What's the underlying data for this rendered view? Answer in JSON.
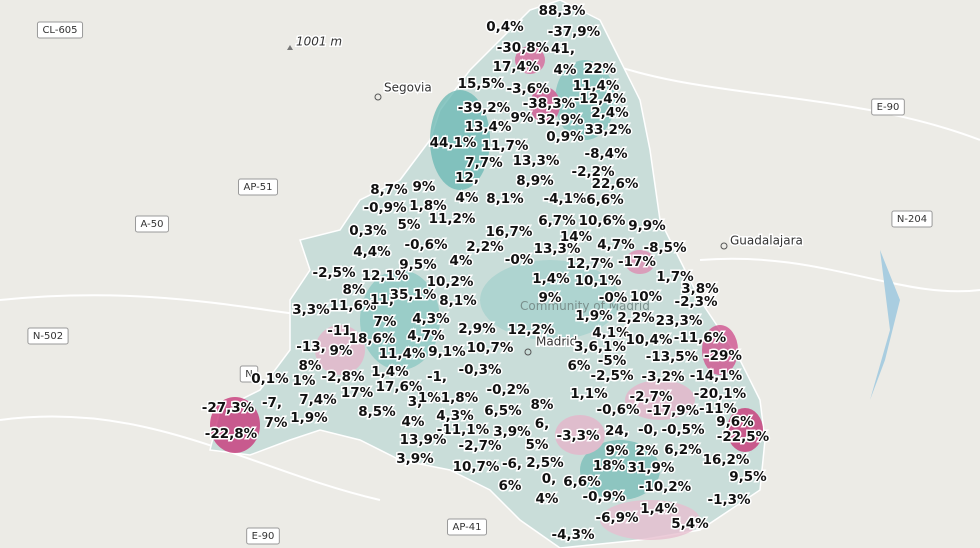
{
  "roads": [
    "CL-605",
    "AP-51",
    "A-50",
    "N-502",
    "E-90",
    "N-204",
    "E-90",
    "AP-41",
    "N"
  ],
  "places": {
    "segovia": "Segovia",
    "guadalajara": "Guadalajara",
    "peak": "1001 m",
    "madrid": "Madrid"
  },
  "labels": [
    "88,3%",
    "0,4%",
    "-37,9%",
    "-30,8%",
    "41,",
    "17,4%",
    "4%",
    "22%",
    "11,4%",
    "15,5%",
    "-3,6%",
    "-12,4%",
    "-38,3%",
    "-39,2%",
    "2,4%",
    "9%",
    "32,9%",
    "13,4%",
    "33,2%",
    "0,9%",
    "44,1%",
    "11,7%",
    "-8,4%",
    "7,7%",
    "13,3%",
    "12,",
    "-2,2%",
    "8,9%",
    "22,6%",
    "8,7%",
    "9%",
    "4%",
    "8,1%",
    "-4,1%",
    "6,6%",
    "-0,9%",
    "1,8%",
    "11,2%",
    "6,7%",
    "10,6%",
    "9,9%",
    "0,3%",
    "5%",
    "16,7%",
    "14%",
    "4,4%",
    "-0,6%",
    "2,2%",
    "13,3%",
    "4,7%",
    "-8,5%",
    "9,5%",
    "4%",
    "-0%",
    "12,7%",
    "-17%",
    "-2,5%",
    "12,1%",
    "10,2%",
    "1,4%",
    "10,1%",
    "1,7%",
    "3,8%",
    "8%",
    "35,1%",
    "9%",
    "-0%",
    "10%",
    "-2,3%",
    "3,3%",
    "11,6%",
    "11,",
    "8,1%",
    "1,9%",
    "2,2%",
    "23,3%",
    "7%",
    "4,3%",
    "2,9%",
    "12,2%",
    "4,1%",
    "-11,",
    "18,6%",
    "4,7%",
    "10,4%",
    "-11,6%",
    "-13,",
    "9%",
    "11,4%",
    "9,1%",
    "10,7%",
    "3,6,1%",
    "-13,5%",
    "-29%",
    "8%",
    "6%",
    "-5%",
    "1,4%",
    "-0,3%",
    "0,1%",
    "1%",
    "-2,8%",
    "-1,",
    "-2,5%",
    "-3,2%",
    "-14,1%",
    "17,6%",
    "-0,2%",
    "1,1%",
    "-27,3%",
    "-7,",
    "7,4%",
    "17%",
    "3,",
    "1%1,8%",
    "8%",
    "-2,7%",
    "-20,1%",
    "-0,6%",
    "-17,9%",
    "-11%",
    "4,3%",
    "6,5%",
    "1,9%",
    "8,5%",
    "7%",
    "4%",
    "-11,1%",
    "3,9%",
    "6,",
    "-3,3%",
    "24,",
    "-0,",
    "-0,5%",
    "9,6%",
    "-22,8%",
    "-22,5%",
    "13,9%",
    "-2,7%",
    "5%",
    "9%",
    "2%",
    "6,2%",
    "3,9%",
    "10,7%",
    "-6,",
    "2,5%",
    "18%",
    "31,9%",
    "16,2%",
    "0,",
    "6,6%",
    "9,5%",
    "6%",
    "-10,2%",
    "-0,9%",
    "4%",
    "-1,3%",
    "1,4%",
    "-6,9%",
    "5,4%",
    "-4,3%"
  ]
}
